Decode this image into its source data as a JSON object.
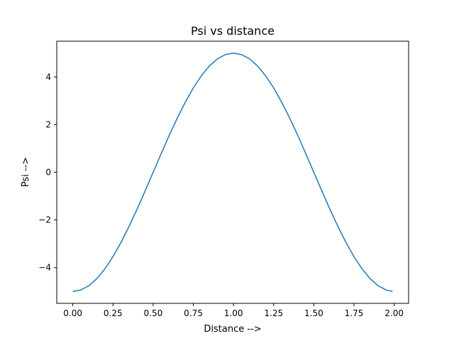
{
  "chart_data": {
    "type": "line",
    "title": "Psi vs distance",
    "xlabel": "Distance -->",
    "ylabel": "Psi -->",
    "xlim": [
      -0.1,
      2.09
    ],
    "ylim": [
      -5.5,
      5.5
    ],
    "xticks": [
      0.0,
      0.25,
      0.5,
      0.75,
      1.0,
      1.25,
      1.5,
      1.75,
      2.0
    ],
    "xtick_labels": [
      "0.00",
      "0.25",
      "0.50",
      "0.75",
      "1.00",
      "1.25",
      "1.50",
      "1.75",
      "2.00"
    ],
    "yticks": [
      -4,
      -2,
      0,
      2,
      4
    ],
    "ytick_labels": [
      "−4",
      "−2",
      "0",
      "2",
      "4"
    ],
    "grid": false,
    "series": [
      {
        "color": "#1f77b4",
        "x": [
          0.0,
          0.05,
          0.1,
          0.15,
          0.2,
          0.25,
          0.3,
          0.35,
          0.4,
          0.45,
          0.5,
          0.55,
          0.6,
          0.65,
          0.7,
          0.75,
          0.8,
          0.85,
          0.9,
          0.95,
          1.0,
          1.05,
          1.1,
          1.15,
          1.2,
          1.25,
          1.3,
          1.35,
          1.4,
          1.45,
          1.5,
          1.55,
          1.6,
          1.65,
          1.7,
          1.75,
          1.8,
          1.85,
          1.9,
          1.95,
          1.99
        ],
        "y": [
          -5.0,
          -4.94,
          -4.76,
          -4.46,
          -4.05,
          -3.54,
          -2.94,
          -2.27,
          -1.55,
          -0.78,
          0.0,
          0.78,
          1.55,
          2.27,
          2.94,
          3.54,
          4.05,
          4.46,
          4.76,
          4.94,
          5.0,
          4.94,
          4.76,
          4.46,
          4.05,
          3.54,
          2.94,
          2.27,
          1.55,
          0.78,
          0.0,
          -0.78,
          -1.55,
          -2.27,
          -2.94,
          -3.54,
          -4.05,
          -4.46,
          -4.76,
          -4.94,
          -5.0
        ]
      }
    ]
  }
}
